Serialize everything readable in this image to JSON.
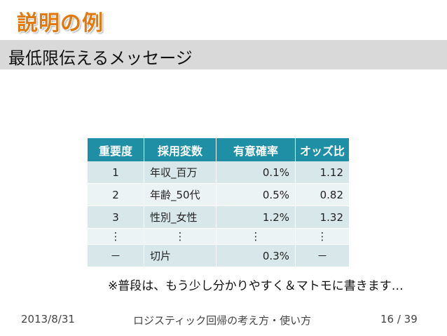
{
  "slide": {
    "title": "説明の例",
    "subtitle": "最低限伝えるメッセージ"
  },
  "table": {
    "headers": [
      "重要度",
      "採用変数",
      "有意確率",
      "オッズ比"
    ],
    "rows": [
      [
        "1",
        "年収_百万",
        "0.1%",
        "1.12"
      ],
      [
        "2",
        "年齢_50代",
        "0.5%",
        "0.82"
      ],
      [
        "3",
        "性別_女性",
        "1.2%",
        "1.32"
      ],
      [
        "⋮",
        "⋮",
        "⋮",
        "⋮"
      ],
      [
        "－",
        "切片",
        "0.3%",
        "－"
      ]
    ]
  },
  "note": "※普段は、もう少し分かりやすく＆マトモに書きます…",
  "footer": {
    "date": "2013/8/31",
    "center": "ロジスティック回帰の考え方・使い方",
    "page": "16 / 39"
  },
  "colors": {
    "title": "#E07A10",
    "header_bg": "#1F8FA5",
    "row_odd": "#D7E7EA",
    "row_even": "#ECF3F4",
    "subtitle_bar": "#D9D9D9"
  }
}
